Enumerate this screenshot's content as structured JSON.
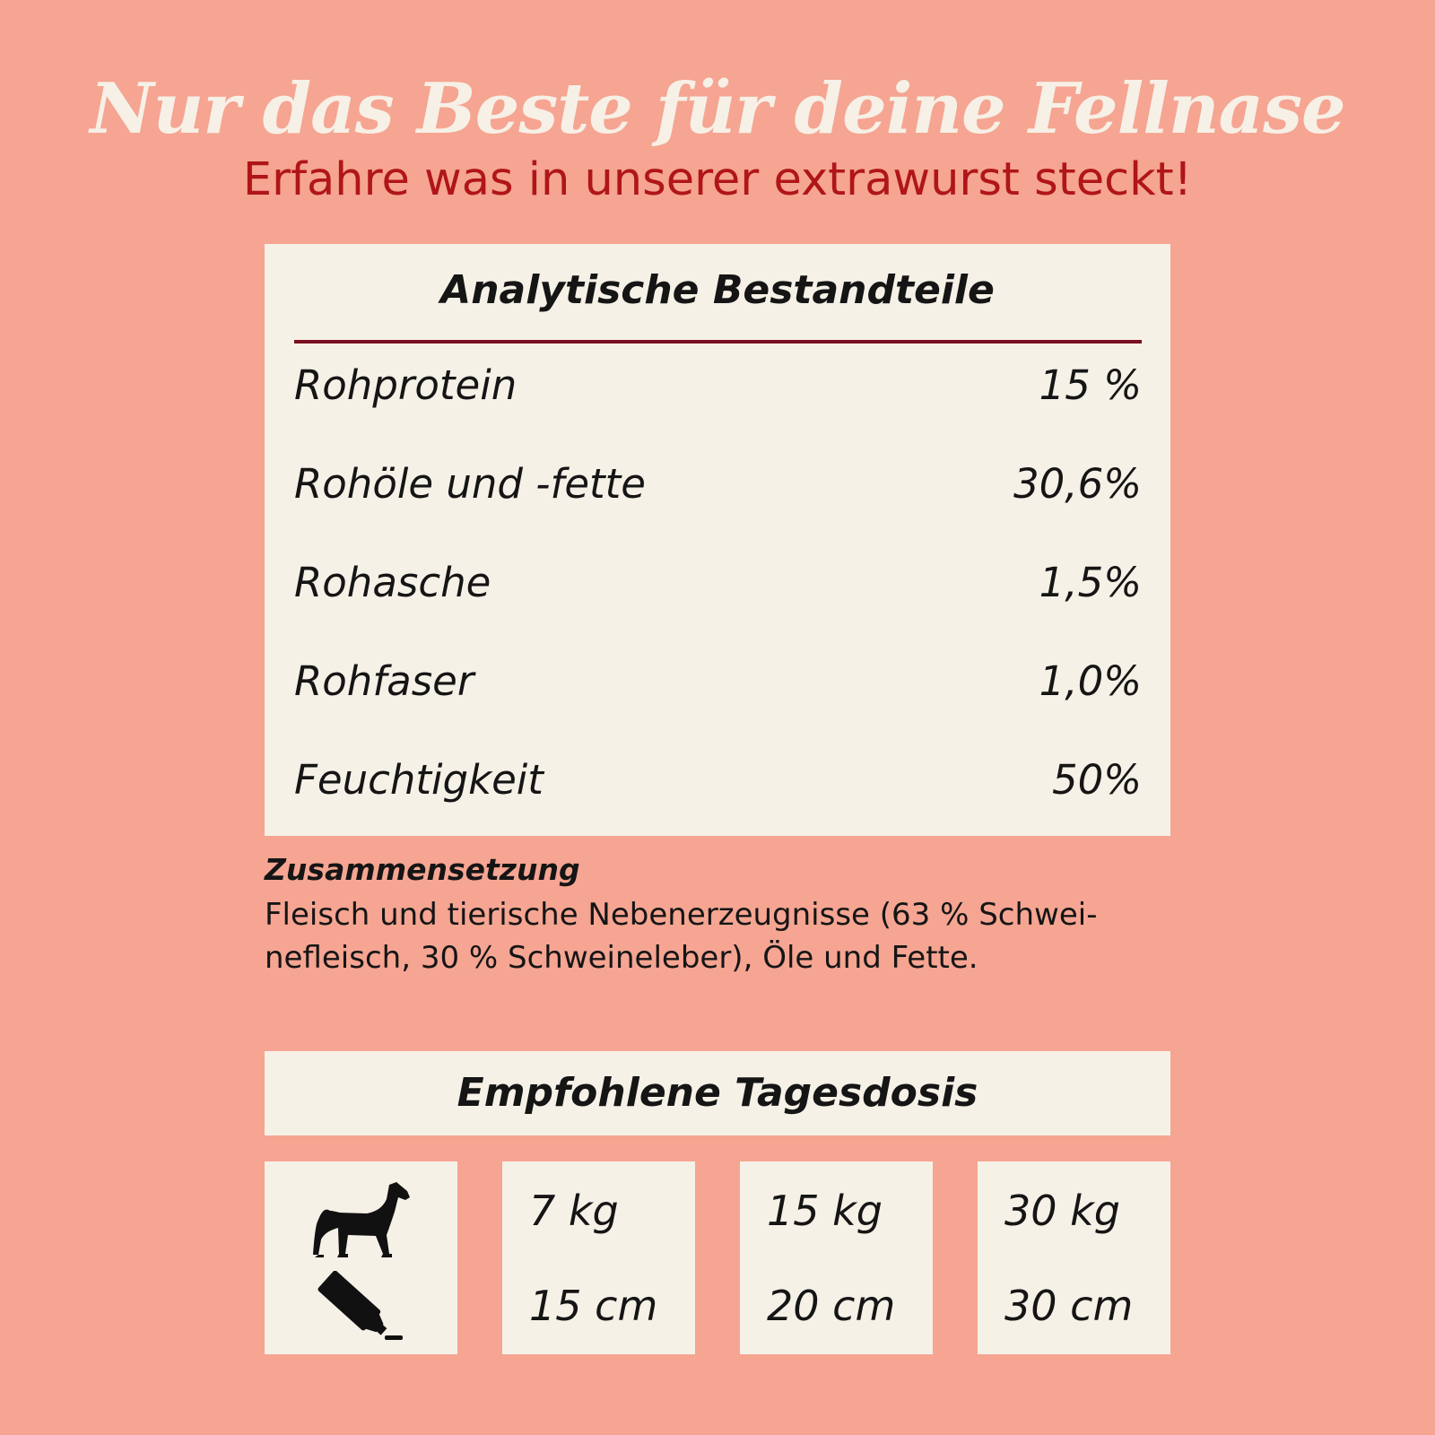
{
  "header": {
    "title": "Nur das Beste für deine Fellnase",
    "subtitle": "Erfahre was in unserer extrawurst steckt!"
  },
  "analysis": {
    "title": "Analytische Bestandteile",
    "rows": [
      {
        "label": "Rohprotein",
        "value": "15 %"
      },
      {
        "label": "Rohöle und -fette",
        "value": "30,6%"
      },
      {
        "label": "Rohasche",
        "value": "1,5%"
      },
      {
        "label": "Rohfaser",
        "value": "1,0%"
      },
      {
        "label": "Feuchtigkeit",
        "value": "50%"
      }
    ]
  },
  "composition": {
    "title": "Zusammensetzung",
    "text": "Fleisch und tierische Nebenerzeugnisse (63 % Schwei-nefleisch, 30 % Schweineleber), Öle und Fette."
  },
  "dosage": {
    "title": "Empfohlene Tagesdosis",
    "icons": [
      "dog-icon",
      "sausage-tube-icon"
    ],
    "cards": [
      {
        "weight": "7 kg",
        "length": "15 cm"
      },
      {
        "weight": "15 kg",
        "length": "20 cm"
      },
      {
        "weight": "30 kg",
        "length": "30 cm"
      }
    ]
  },
  "colors": {
    "background": "#f5a592",
    "panel": "#f6f1e7",
    "title": "#f7f0e6",
    "subtitle": "#b0151a",
    "rule": "#7a1020",
    "text": "#151515"
  }
}
